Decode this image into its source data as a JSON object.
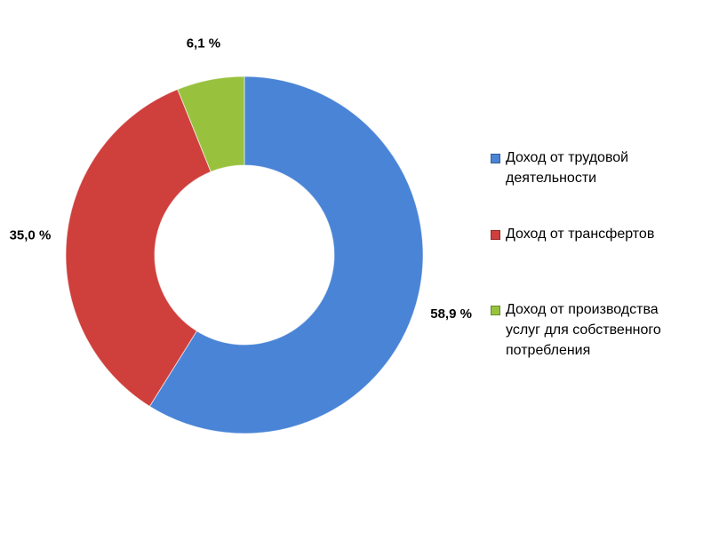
{
  "chart_data": {
    "type": "donut",
    "categories": [
      "Доход от трудовой деятельности",
      "Доход от трансфертов",
      "Доход от производства услуг для собственного потребления"
    ],
    "values": [
      58.9,
      35.0,
      6.1
    ],
    "value_labels": [
      "58,9 %",
      "35,0 %",
      "6,1 %"
    ],
    "colors": [
      "#4a84d6",
      "#cf3f3c",
      "#98c23e"
    ],
    "legend": "right"
  }
}
